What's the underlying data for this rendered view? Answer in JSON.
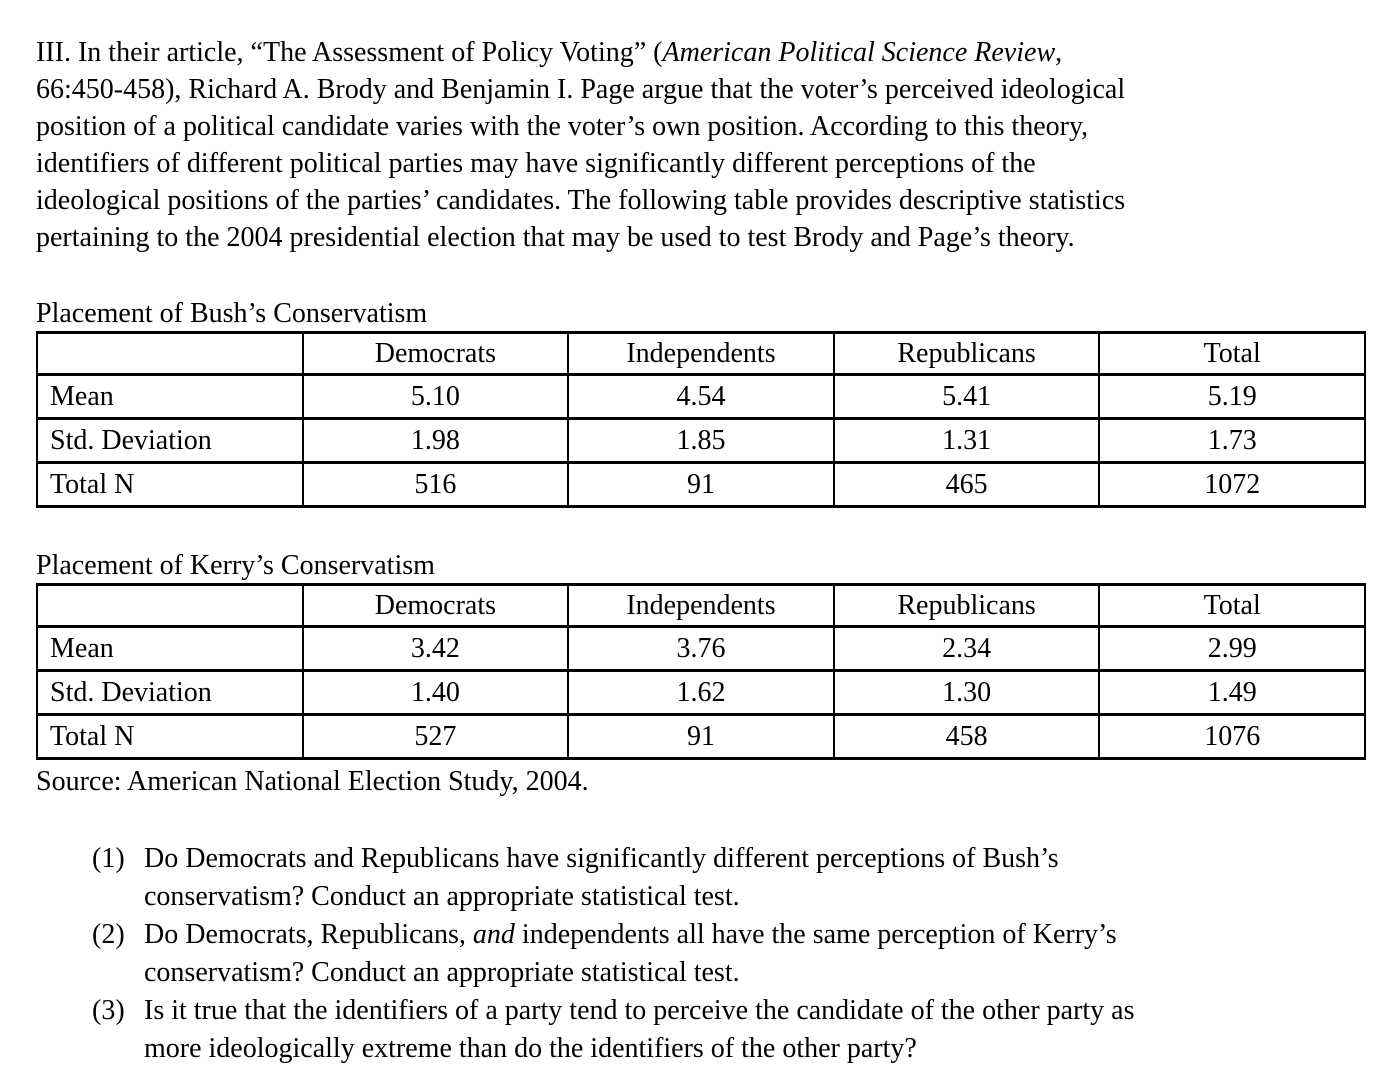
{
  "page": {
    "background_color": "#ffffff",
    "text_color": "#000000"
  },
  "intro": {
    "seg1": "III. In their article, “The Assessment of Policy Voting” (",
    "seg2_italic": "American Political Science Review",
    "seg3": ",\n66:450-458), Richard A. Brody and Benjamin I. Page argue that the voter’s perceived ideological\nposition of a political candidate varies with the voter’s own position. According to this theory,\nidentifiers of different political parties may have significantly different perceptions of the\nideological positions of the parties’ candidates. The following table provides descriptive statistics\npertaining to the 2004 presidential election that may be used to test Brody and Page’s theory."
  },
  "tables": [
    {
      "title": "Placement of Bush’s Conservatism",
      "columns": [
        "",
        "Democrats",
        "Independents",
        "Republicans",
        "Total"
      ],
      "rows": [
        {
          "label": "Mean",
          "values": [
            "5.10",
            "4.54",
            "5.41",
            "5.19"
          ]
        },
        {
          "label": "Std. Deviation",
          "values": [
            "1.98",
            "1.85",
            "1.31",
            "1.73"
          ]
        },
        {
          "label": "Total N",
          "values": [
            "516",
            "91",
            "465",
            "1072"
          ]
        }
      ]
    },
    {
      "title": "Placement of Kerry’s Conservatism",
      "columns": [
        "",
        "Democrats",
        "Independents",
        "Republicans",
        "Total"
      ],
      "rows": [
        {
          "label": "Mean",
          "values": [
            "3.42",
            "3.76",
            "2.34",
            "2.99"
          ]
        },
        {
          "label": "Std. Deviation",
          "values": [
            "1.40",
            "1.62",
            "1.30",
            "1.49"
          ]
        },
        {
          "label": "Total N",
          "values": [
            "527",
            "91",
            "458",
            "1076"
          ]
        }
      ]
    }
  ],
  "source_note": "Source: American National Election Study, 2004.",
  "questions": {
    "q1": {
      "number": "(1)",
      "text": "Do Democrats and Republicans have significantly different perceptions of Bush’s\nconservatism? Conduct an appropriate statistical test."
    },
    "q2": {
      "number": "(2)",
      "seg1": "Do Democrats, Republicans, ",
      "seg2_italic": "and",
      "seg3": " independents all have the same perception of Kerry’s\nconservatism? Conduct an appropriate statistical test."
    },
    "q3": {
      "number": "(3)",
      "text": "Is it true that the identifiers of a party tend to perceive the candidate of the other party as\nmore ideologically extreme than do the identifiers of the other party?"
    }
  }
}
